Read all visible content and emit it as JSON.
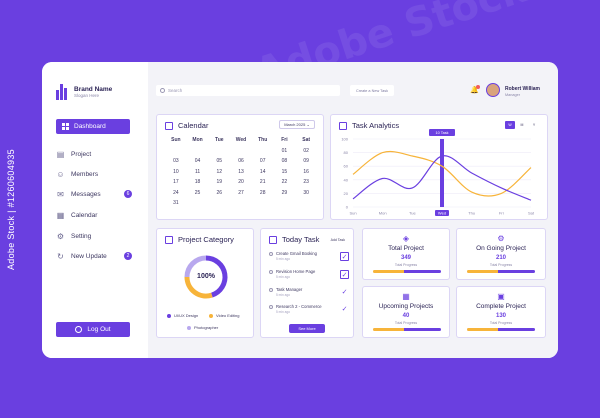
{
  "colors": {
    "accent": "#6a3fe0",
    "secondary": "#f7b43a",
    "bg": "#6a3fe0"
  },
  "watermark": "Adobe Stock",
  "side_id": "Adobe Stock | #1260604935",
  "brand": {
    "name": "Brand Name",
    "slogan": "Slogan Here"
  },
  "nav": {
    "dashboard": "Dashboard",
    "items": [
      {
        "label": "Project",
        "icon": "document-icon"
      },
      {
        "label": "Members",
        "icon": "users-icon"
      },
      {
        "label": "Messages",
        "icon": "mail-icon",
        "badge": "6"
      },
      {
        "label": "Calendar",
        "icon": "calendar-icon"
      },
      {
        "label": "Setting",
        "icon": "gear-icon"
      },
      {
        "label": "New Update",
        "icon": "refresh-icon",
        "badge": "2"
      }
    ],
    "logout": "Log Out"
  },
  "header": {
    "search_placeholder": "Search",
    "create_label": "Create a New Task",
    "user_name": "Robert William",
    "user_role": "Manager"
  },
  "calendar": {
    "title": "Calendar",
    "month": "March 2025",
    "weekdays": [
      "Sun",
      "Mon",
      "Tue",
      "Wed",
      "Thu",
      "Fri",
      "Sat"
    ],
    "days": [
      "",
      "",
      "",
      "",
      "",
      "01",
      "02",
      "03",
      "04",
      "05",
      "06",
      "07",
      "08",
      "09",
      "10",
      "11",
      "12",
      "13",
      "14",
      "15",
      "16",
      "17",
      "18",
      "19",
      "20",
      "21",
      "22",
      "23",
      "24",
      "25",
      "26",
      "27",
      "28",
      "29",
      "30",
      "31"
    ]
  },
  "analytics": {
    "title": "Task Analytics",
    "tabs": [
      "W",
      "M",
      "Y"
    ],
    "tooltip": "10 Task",
    "chart_data": {
      "type": "line",
      "categories": [
        "Sun",
        "Mon",
        "Tue",
        "Wed",
        "Thu",
        "Fri",
        "Sat"
      ],
      "yticks": [
        0,
        20,
        40,
        60,
        80,
        100
      ],
      "ylim": [
        0,
        100
      ],
      "series": [
        {
          "values": [
            48,
            80,
            75,
            60,
            22,
            20,
            58
          ],
          "color": "#f7b43a"
        },
        {
          "values": [
            12,
            42,
            28,
            75,
            50,
            28,
            10
          ],
          "color": "#6a3fe0"
        }
      ],
      "highlight_index": 3
    }
  },
  "category": {
    "title": "Project Category",
    "percent_label": "100%",
    "chart_data": {
      "type": "pie",
      "labels": [
        "UI/UX Design",
        "Video Editing",
        "Photographer"
      ],
      "values": [
        45,
        30,
        25
      ],
      "colors": [
        "#6a3fe0",
        "#f7b43a",
        "#b8a8ee"
      ]
    }
  },
  "today_task": {
    "title": "Today Task",
    "add_label": "Add Task",
    "see_more": "See More",
    "items": [
      {
        "name": "Create Gmail Booking",
        "time": "5 min ago",
        "checked": true
      },
      {
        "name": "Revision Home Page",
        "time": "5 min ago",
        "checked": true
      },
      {
        "name": "Task Manager",
        "time": "5 min ago",
        "checked": true
      },
      {
        "name": "Research 2 - Commerce",
        "time": "5 min ago",
        "checked": true
      }
    ]
  },
  "stats": [
    {
      "title": "Total Project",
      "value": "349",
      "sub": "Total Progress",
      "icon": "cube-icon",
      "yellow": 0.45,
      "purple": 0.55
    },
    {
      "title": "On Going Project",
      "value": "210",
      "sub": "Total Progress",
      "icon": "gear-icon",
      "yellow": 0.45,
      "purple": 0.55
    },
    {
      "title": "Upcoming Projects",
      "value": "40",
      "sub": "Total Progress",
      "icon": "calendar-icon",
      "yellow": 0.45,
      "purple": 0.55
    },
    {
      "title": "Complete Project",
      "value": "130",
      "sub": "Total Progress",
      "icon": "clipboard-icon",
      "yellow": 0.45,
      "purple": 0.55
    }
  ]
}
